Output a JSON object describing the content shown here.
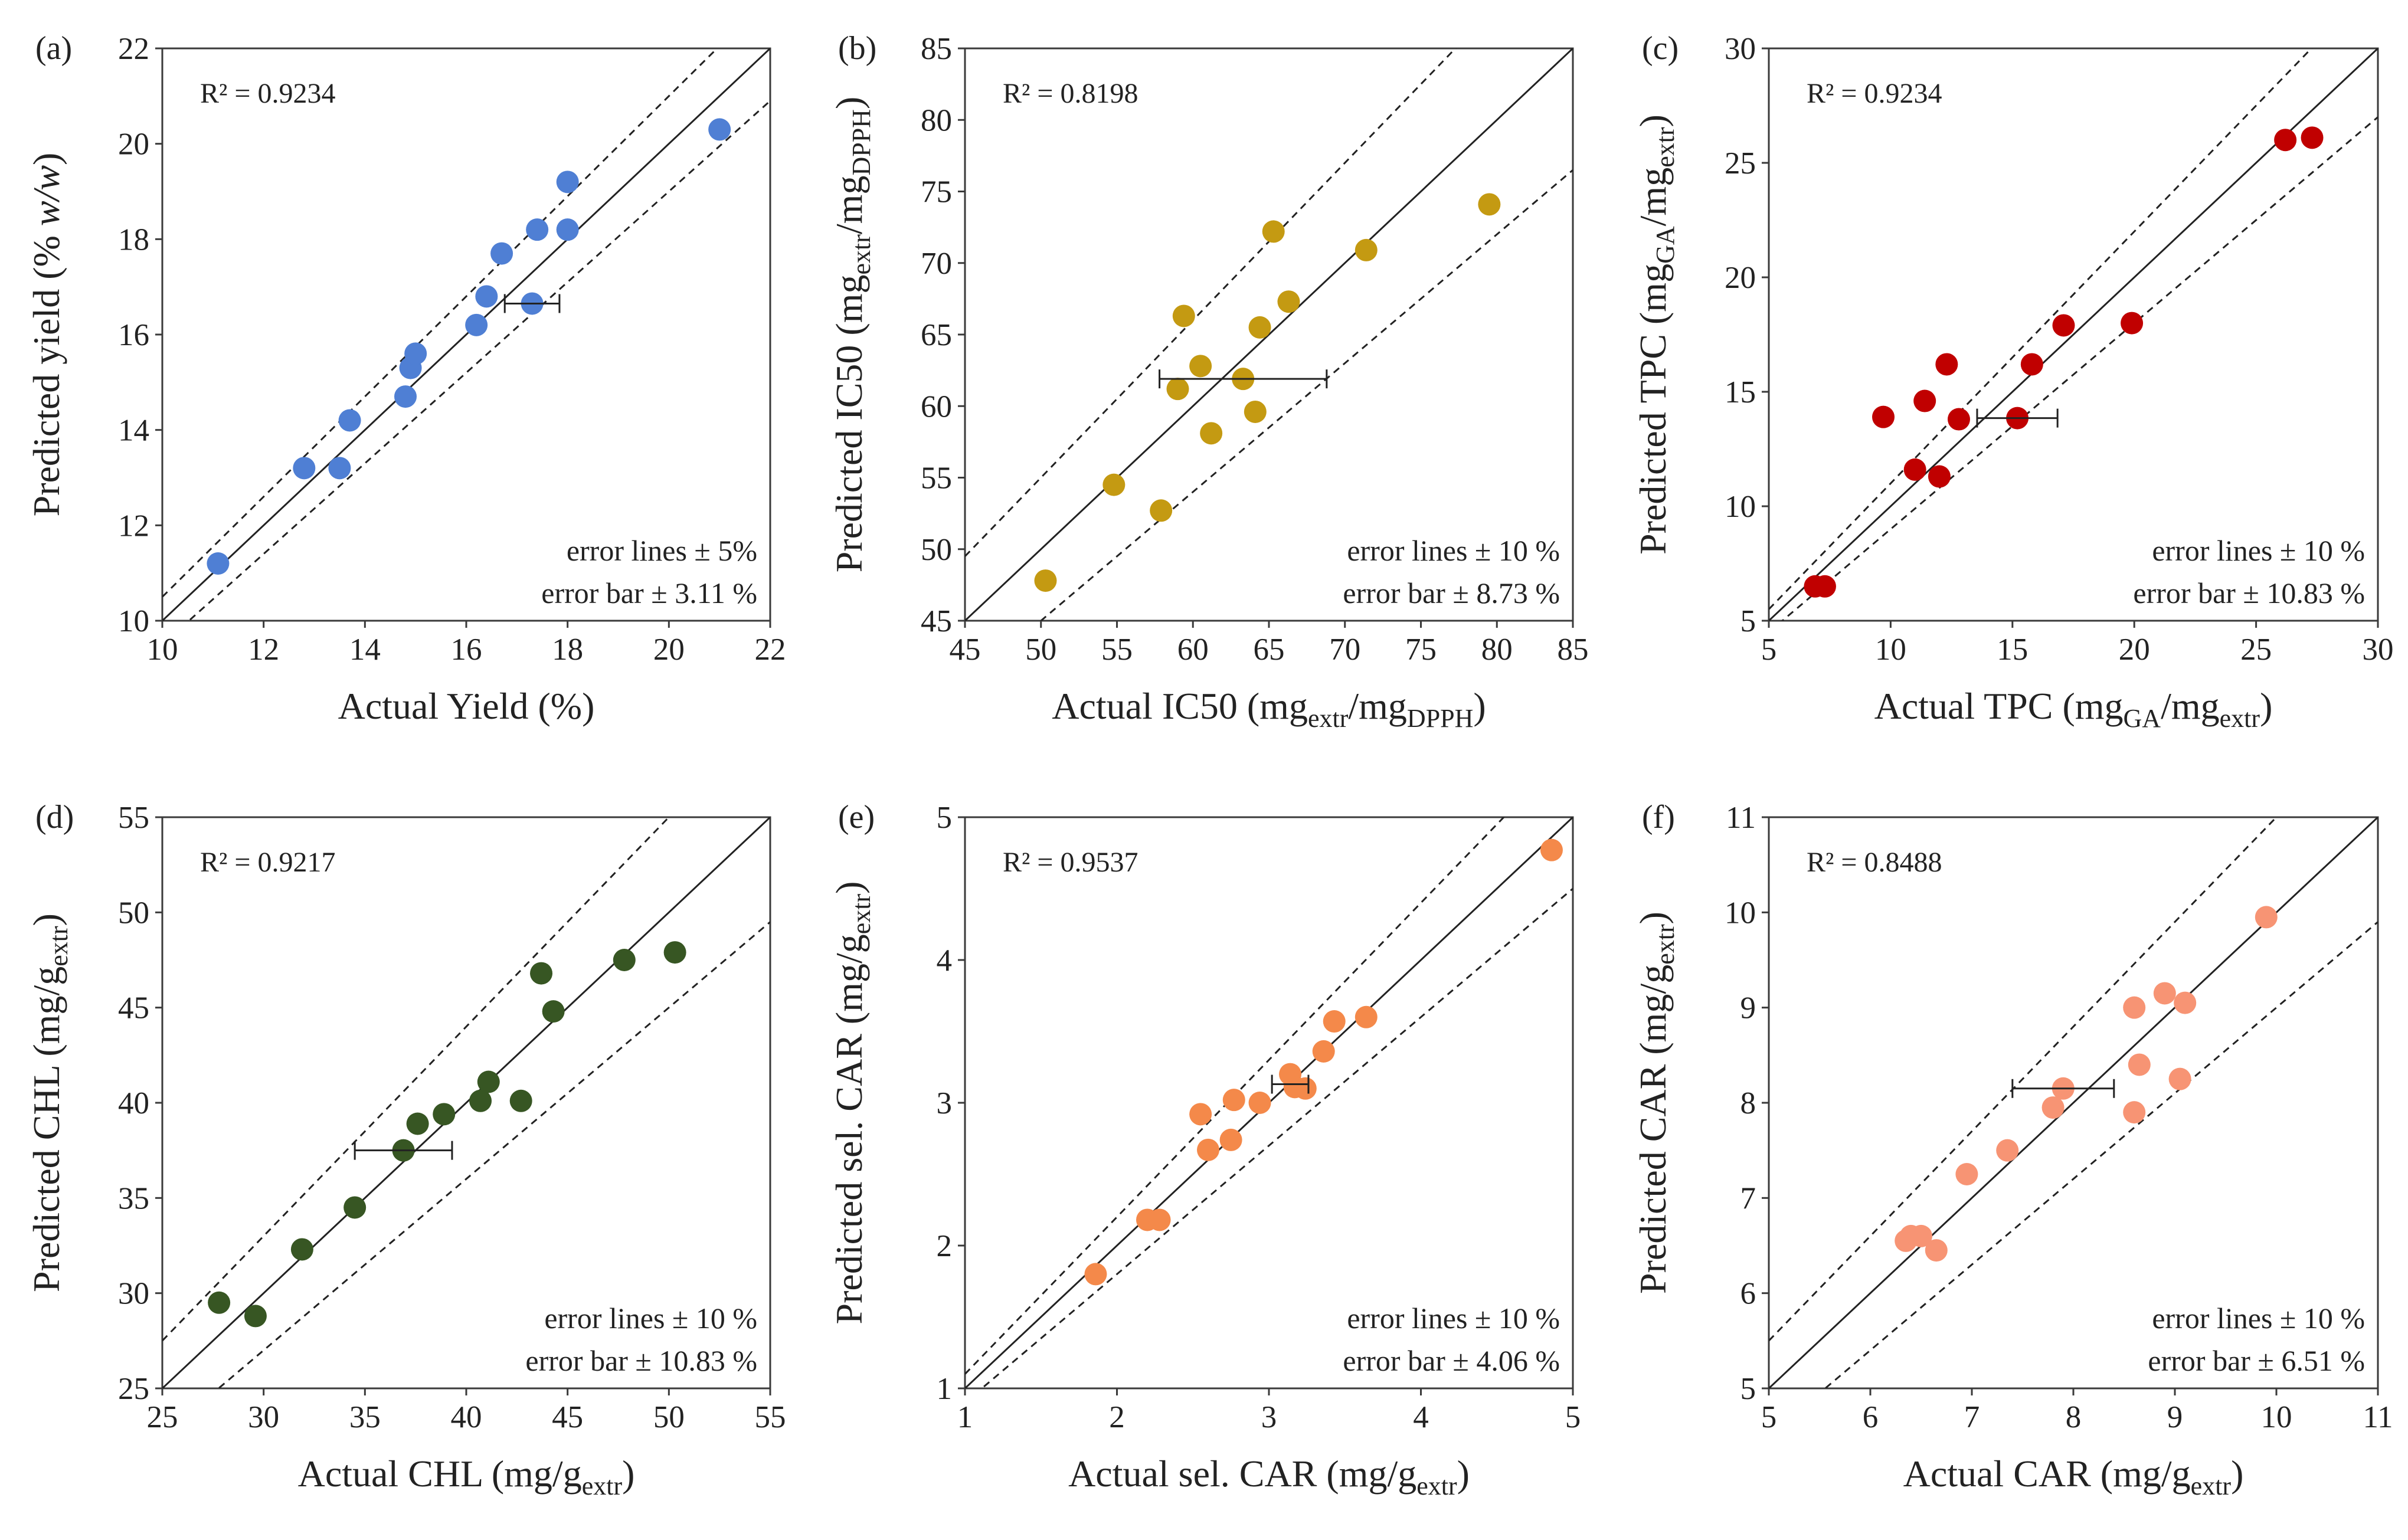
{
  "chart_data": [
    {
      "id": "a",
      "type": "scatter",
      "panel_label": "(a)",
      "r2_label": "R² = 0.9234",
      "xlabel": "Actual Yield (%)",
      "ylabel": "Predicted  yield (% w/w)",
      "xlim": [
        10,
        22
      ],
      "ylim": [
        10,
        22
      ],
      "x_ticks": [
        "10",
        "12",
        "14",
        "16",
        "18",
        "20",
        "22"
      ],
      "y_ticks": [
        "10",
        "12",
        "14",
        "16",
        "18",
        "20",
        "22"
      ],
      "color": "#4f7fd4",
      "error_lines_pct": 5,
      "error_lines_text": "error lines  ± 5%",
      "error_bar_text": "error bar ± 3.11 %",
      "error_bar": {
        "x": 17.3,
        "y": 16.65,
        "half_width": 0.54
      },
      "points": [
        [
          11.1,
          11.2
        ],
        [
          12.8,
          13.2
        ],
        [
          13.5,
          13.2
        ],
        [
          13.7,
          14.2
        ],
        [
          14.8,
          14.7
        ],
        [
          14.9,
          15.3
        ],
        [
          15.0,
          15.6
        ],
        [
          16.2,
          16.2
        ],
        [
          16.4,
          16.8
        ],
        [
          17.3,
          16.65
        ],
        [
          16.7,
          17.7
        ],
        [
          17.4,
          18.2
        ],
        [
          18.0,
          18.2
        ],
        [
          18.0,
          19.2
        ],
        [
          21.0,
          20.3
        ]
      ]
    },
    {
      "id": "b",
      "type": "scatter",
      "panel_label": "(b)",
      "r2_label": "R² = 0.8198",
      "xlabel": "Actual IC50 (mg_extr/mg_DPPH)",
      "ylabel": "Predicted IC50 (mg_extr/mg_DPPH)",
      "xlim": [
        45,
        85
      ],
      "ylim": [
        45,
        85
      ],
      "x_ticks": [
        "45",
        "50",
        "55",
        "60",
        "65",
        "70",
        "75",
        "80",
        "85"
      ],
      "y_ticks": [
        "45",
        "50",
        "55",
        "60",
        "65",
        "70",
        "75",
        "80",
        "85"
      ],
      "color": "#c49a12",
      "error_lines_pct": 10,
      "error_lines_text": "error lines  ± 10 %",
      "error_bar_text": "error bar ± 8.73 %",
      "error_bar": {
        "x": 63.3,
        "y": 61.9,
        "half_width": 5.5
      },
      "points": [
        [
          50.3,
          47.8
        ],
        [
          54.8,
          54.5
        ],
        [
          57.9,
          52.7
        ],
        [
          59.0,
          61.2
        ],
        [
          59.4,
          66.3
        ],
        [
          60.5,
          62.8
        ],
        [
          61.2,
          58.1
        ],
        [
          63.3,
          61.9
        ],
        [
          64.1,
          59.6
        ],
        [
          64.4,
          65.5
        ],
        [
          65.3,
          72.2
        ],
        [
          66.3,
          67.3
        ],
        [
          71.4,
          70.9
        ],
        [
          79.5,
          74.1
        ]
      ]
    },
    {
      "id": "c",
      "type": "scatter",
      "panel_label": "(c)",
      "r2_label": "R² = 0.9234",
      "xlabel": "Actual TPC (mg_GA/mg_extr)",
      "ylabel": "Predicted TPC (mg_GA/mg_extr)",
      "xlim": [
        5,
        30
      ],
      "ylim": [
        5,
        30
      ],
      "x_ticks": [
        "5",
        "10",
        "15",
        "20",
        "25",
        "30"
      ],
      "y_ticks": [
        "5",
        "10",
        "15",
        "20",
        "25",
        "30"
      ],
      "color": "#c00000",
      "error_lines_pct": 10,
      "error_lines_text": "error lines  ± 10 %",
      "error_bar_text": "error bar ± 10.83 %",
      "error_bar": {
        "x": 15.2,
        "y": 13.85,
        "half_width": 1.65
      },
      "points": [
        [
          6.9,
          6.5
        ],
        [
          7.3,
          6.5
        ],
        [
          9.7,
          13.9
        ],
        [
          11.0,
          11.6
        ],
        [
          11.4,
          14.6
        ],
        [
          12.0,
          11.3
        ],
        [
          12.3,
          16.2
        ],
        [
          12.8,
          13.8
        ],
        [
          15.2,
          13.85
        ],
        [
          15.8,
          16.2
        ],
        [
          17.1,
          17.9
        ],
        [
          19.9,
          18.0
        ],
        [
          26.2,
          26.0
        ],
        [
          27.3,
          26.1
        ]
      ]
    },
    {
      "id": "d",
      "type": "scatter",
      "panel_label": "(d)",
      "r2_label": "R² = 0.9217",
      "xlabel": "Actual CHL (mg/g_extr)",
      "ylabel": "Predicted CHL (mg/g_extr)",
      "xlim": [
        25,
        55
      ],
      "ylim": [
        25,
        55
      ],
      "x_ticks": [
        "25",
        "30",
        "35",
        "40",
        "45",
        "50",
        "55"
      ],
      "y_ticks": [
        "25",
        "30",
        "35",
        "40",
        "45",
        "50",
        "55"
      ],
      "color": "#375623",
      "error_lines_pct": 10,
      "error_lines_text": "error lines  ± 10 %",
      "error_bar_text": "error bar ± 10.83 %",
      "error_bar": {
        "x": 36.9,
        "y": 37.5,
        "half_width": 2.4
      },
      "points": [
        [
          27.8,
          29.5
        ],
        [
          29.6,
          28.8
        ],
        [
          31.9,
          32.3
        ],
        [
          34.5,
          34.5
        ],
        [
          36.9,
          37.5
        ],
        [
          37.6,
          38.9
        ],
        [
          38.9,
          39.4
        ],
        [
          40.7,
          40.1
        ],
        [
          41.1,
          41.1
        ],
        [
          42.7,
          40.1
        ],
        [
          43.7,
          46.8
        ],
        [
          44.3,
          44.8
        ],
        [
          47.8,
          47.5
        ],
        [
          50.3,
          47.9
        ]
      ]
    },
    {
      "id": "e",
      "type": "scatter",
      "panel_label": "(e)",
      "r2_label": "R² = 0.9537",
      "xlabel": "Actual sel. CAR (mg/g_extr)",
      "ylabel": "Predicted sel. CAR (mg/g_extr)",
      "xlim": [
        1,
        5
      ],
      "ylim": [
        1,
        5
      ],
      "x_ticks": [
        "1",
        "2",
        "3",
        "4",
        "5"
      ],
      "y_ticks": [
        "1",
        "2",
        "3",
        "4",
        "5"
      ],
      "color": "#f4894a",
      "error_lines_pct": 10,
      "error_lines_text": "error lines  ± 10 %",
      "error_bar_text": "error bar ± 4.06 %",
      "error_bar": {
        "x": 3.14,
        "y": 3.13,
        "half_width": 0.12
      },
      "points": [
        [
          1.86,
          1.8
        ],
        [
          2.2,
          2.18
        ],
        [
          2.28,
          2.18
        ],
        [
          2.55,
          2.92
        ],
        [
          2.6,
          2.67
        ],
        [
          2.75,
          2.74
        ],
        [
          2.77,
          3.02
        ],
        [
          2.94,
          3.0
        ],
        [
          3.14,
          3.2
        ],
        [
          3.17,
          3.11
        ],
        [
          3.24,
          3.1
        ],
        [
          3.36,
          3.36
        ],
        [
          3.43,
          3.57
        ],
        [
          3.64,
          3.6
        ],
        [
          4.86,
          4.77
        ]
      ]
    },
    {
      "id": "f",
      "type": "scatter",
      "panel_label": "(f)",
      "r2_label": "R² = 0.8488",
      "xlabel": "Actual CAR (mg/g_extr)",
      "ylabel": "Predicted CAR (mg/g_extr)",
      "xlim": [
        5,
        11
      ],
      "ylim": [
        5,
        11
      ],
      "x_ticks": [
        "5",
        "6",
        "7",
        "8",
        "9",
        "10",
        "11"
      ],
      "y_ticks": [
        "5",
        "6",
        "7",
        "8",
        "9",
        "10",
        "11"
      ],
      "color": "#f79474",
      "error_lines_pct": 10,
      "error_lines_text": "error lines  ± 10 %",
      "error_bar_text": "error bar ± 6.51 %",
      "error_bar": {
        "x": 7.9,
        "y": 8.15,
        "half_width": 0.5
      },
      "points": [
        [
          6.35,
          6.55
        ],
        [
          6.4,
          6.6
        ],
        [
          6.5,
          6.6
        ],
        [
          6.65,
          6.45
        ],
        [
          6.95,
          7.25
        ],
        [
          7.35,
          7.5
        ],
        [
          7.8,
          7.95
        ],
        [
          7.9,
          8.15
        ],
        [
          8.6,
          7.9
        ],
        [
          8.6,
          9.0
        ],
        [
          8.65,
          8.4
        ],
        [
          8.9,
          9.15
        ],
        [
          9.05,
          8.25
        ],
        [
          9.1,
          9.05
        ],
        [
          9.9,
          9.95
        ]
      ]
    }
  ]
}
